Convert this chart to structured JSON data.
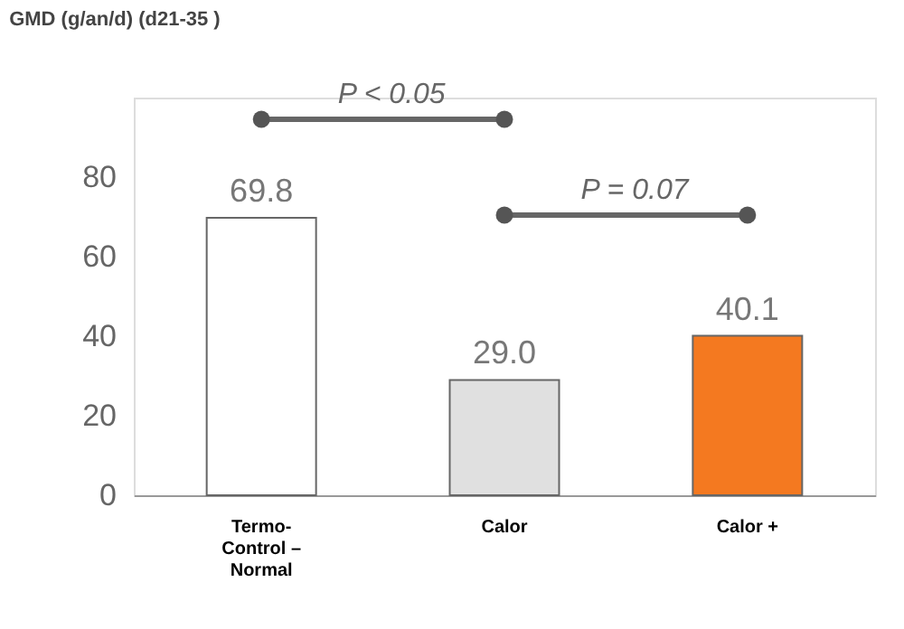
{
  "chart_data": {
    "type": "bar",
    "title": "GMD (g/an/d) (d21-35 )",
    "categories": [
      "Termo-Control – Normal",
      "Calor",
      "Calor +"
    ],
    "values": [
      69.8,
      29.0,
      40.1
    ],
    "colors": [
      "#ffffff",
      "#e0e0e0",
      "#f47920"
    ],
    "value_labels": [
      "69.8",
      "29.0",
      "40.1"
    ],
    "ylim": [
      0,
      100
    ],
    "yticks": [
      0,
      20,
      40,
      60,
      80
    ],
    "grid": false,
    "annotations": [
      "P < 0.05",
      "P = 0.07"
    ]
  }
}
